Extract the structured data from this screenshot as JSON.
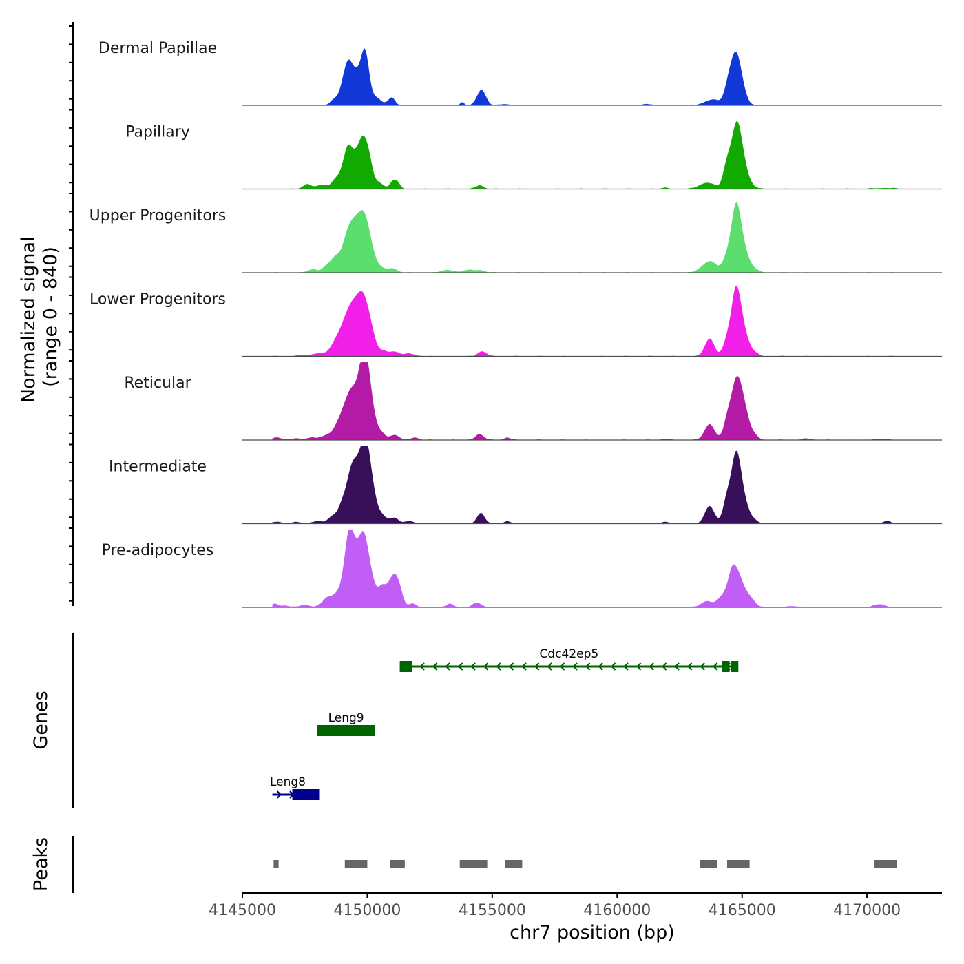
{
  "chart_data": {
    "type": "area",
    "title": "",
    "ylabel": [
      "Normalized signal",
      "(range 0 - 840)"
    ],
    "xlabel": "chr7 position (bp)",
    "xlim": [
      4145000,
      4173000
    ],
    "ylim": [
      0,
      840
    ],
    "xticks": [
      4145000,
      4150000,
      4155000,
      4160000,
      4165000,
      4170000
    ],
    "xtick_labels": [
      "4145000",
      "4150000",
      "4155000",
      "4160000",
      "4165000",
      "4170000"
    ],
    "tracks": [
      {
        "name": "Dermal Papillae",
        "color": "#1238d8",
        "peaks": [
          [
            4148650,
            70,
            150
          ],
          [
            4149000,
            150,
            200
          ],
          [
            4149230,
            570,
            180
          ],
          [
            4149480,
            230,
            160
          ],
          [
            4149800,
            580,
            200
          ],
          [
            4149950,
            380,
            140
          ],
          [
            4150320,
            120,
            220
          ],
          [
            4151000,
            90,
            120
          ],
          [
            4153800,
            50,
            80
          ],
          [
            4154570,
            250,
            170
          ],
          [
            4163800,
            90,
            300
          ],
          [
            4164400,
            150,
            150
          ],
          [
            4164700,
            710,
            210
          ],
          [
            4164950,
            250,
            200
          ],
          [
            4155500,
            20,
            160
          ],
          [
            4161200,
            20,
            160
          ],
          [
            4150900,
            40,
            160
          ]
        ]
      },
      {
        "name": "Papillary",
        "color": "#12aa00",
        "peaks": [
          [
            4147600,
            80,
            160
          ],
          [
            4148200,
            70,
            200
          ],
          [
            4148700,
            100,
            150
          ],
          [
            4149000,
            150,
            220
          ],
          [
            4149230,
            520,
            180
          ],
          [
            4149550,
            330,
            200
          ],
          [
            4149850,
            660,
            200
          ],
          [
            4150100,
            250,
            160
          ],
          [
            4150500,
            90,
            160
          ],
          [
            4151000,
            110,
            110
          ],
          [
            4151200,
            110,
            110
          ],
          [
            4154500,
            60,
            150
          ],
          [
            4163600,
            100,
            300
          ],
          [
            4164380,
            330,
            150
          ],
          [
            4164750,
            880,
            200
          ],
          [
            4165000,
            350,
            200
          ],
          [
            4165300,
            60,
            200
          ],
          [
            4161900,
            20,
            130
          ],
          [
            4170700,
            15,
            400
          ]
        ]
      },
      {
        "name": "Upper Progenitors",
        "color": "#5cde6e",
        "peaks": [
          [
            4147800,
            50,
            200
          ],
          [
            4148400,
            110,
            180
          ],
          [
            4148700,
            170,
            160
          ],
          [
            4149000,
            180,
            200
          ],
          [
            4149270,
            540,
            200
          ],
          [
            4149550,
            480,
            180
          ],
          [
            4149860,
            780,
            200
          ],
          [
            4150150,
            270,
            180
          ],
          [
            4150500,
            80,
            180
          ],
          [
            4151000,
            70,
            180
          ],
          [
            4153200,
            40,
            250
          ],
          [
            4154000,
            40,
            200
          ],
          [
            4154500,
            40,
            200
          ],
          [
            4163700,
            180,
            300
          ],
          [
            4164380,
            200,
            160
          ],
          [
            4164750,
            990,
            190
          ],
          [
            4165050,
            310,
            200
          ],
          [
            4165400,
            70,
            200
          ]
        ]
      },
      {
        "name": "Lower Progenitors",
        "color": "#f21fe8",
        "peaks": [
          [
            4147500,
            20,
            300
          ],
          [
            4148100,
            50,
            200
          ],
          [
            4148600,
            110,
            180
          ],
          [
            4148900,
            250,
            200
          ],
          [
            4149250,
            560,
            220
          ],
          [
            4149550,
            500,
            200
          ],
          [
            4149850,
            750,
            200
          ],
          [
            4150150,
            320,
            180
          ],
          [
            4150600,
            80,
            220
          ],
          [
            4151100,
            70,
            200
          ],
          [
            4151700,
            40,
            220
          ],
          [
            4154600,
            80,
            170
          ],
          [
            4163700,
            280,
            190
          ],
          [
            4164380,
            210,
            150
          ],
          [
            4164750,
            1000,
            190
          ],
          [
            4165050,
            320,
            200
          ],
          [
            4165400,
            70,
            200
          ]
        ]
      },
      {
        "name": "Reticular",
        "color": "#b31aa5",
        "peaks": [
          [
            4146400,
            40,
            150
          ],
          [
            4147100,
            20,
            250
          ],
          [
            4147800,
            40,
            200
          ],
          [
            4148400,
            80,
            200
          ],
          [
            4148800,
            160,
            180
          ],
          [
            4149000,
            180,
            180
          ],
          [
            4149270,
            560,
            200
          ],
          [
            4149540,
            460,
            180
          ],
          [
            4149860,
            1200,
            180
          ],
          [
            4150120,
            520,
            180
          ],
          [
            4150500,
            120,
            200
          ],
          [
            4151100,
            80,
            180
          ],
          [
            4151900,
            40,
            150
          ],
          [
            4154500,
            90,
            170
          ],
          [
            4155600,
            40,
            120
          ],
          [
            4161900,
            20,
            120
          ],
          [
            4163700,
            250,
            200
          ],
          [
            4164400,
            270,
            150
          ],
          [
            4164750,
            830,
            200
          ],
          [
            4165050,
            450,
            200
          ],
          [
            4165400,
            90,
            200
          ],
          [
            4167600,
            20,
            200
          ],
          [
            4170500,
            20,
            200
          ]
        ]
      },
      {
        "name": "Intermediate",
        "color": "#38105a",
        "peaks": [
          [
            4146400,
            30,
            150
          ],
          [
            4147200,
            20,
            250
          ],
          [
            4148000,
            40,
            200
          ],
          [
            4148600,
            110,
            180
          ],
          [
            4148950,
            200,
            160
          ],
          [
            4149300,
            620,
            200
          ],
          [
            4149550,
            560,
            180
          ],
          [
            4149900,
            1230,
            190
          ],
          [
            4150200,
            420,
            180
          ],
          [
            4150600,
            120,
            200
          ],
          [
            4151100,
            90,
            160
          ],
          [
            4151700,
            40,
            160
          ],
          [
            4154550,
            170,
            150
          ],
          [
            4155600,
            40,
            120
          ],
          [
            4161900,
            30,
            120
          ],
          [
            4163700,
            280,
            190
          ],
          [
            4164380,
            350,
            150
          ],
          [
            4164750,
            1040,
            190
          ],
          [
            4165050,
            310,
            200
          ],
          [
            4165400,
            60,
            200
          ],
          [
            4170800,
            40,
            160
          ]
        ]
      },
      {
        "name": "Pre-adipocytes",
        "color": "#c05ef5",
        "peaks": [
          [
            4146300,
            60,
            120
          ],
          [
            4146700,
            30,
            150
          ],
          [
            4147500,
            40,
            200
          ],
          [
            4148400,
            150,
            200
          ],
          [
            4148800,
            180,
            180
          ],
          [
            4149100,
            170,
            180
          ],
          [
            4149280,
            1000,
            180
          ],
          [
            4149550,
            460,
            180
          ],
          [
            4149860,
            1040,
            200
          ],
          [
            4150200,
            300,
            180
          ],
          [
            4150600,
            300,
            160
          ],
          [
            4150900,
            220,
            160
          ],
          [
            4151100,
            360,
            160
          ],
          [
            4151300,
            200,
            140
          ],
          [
            4151800,
            60,
            160
          ],
          [
            4153300,
            50,
            160
          ],
          [
            4154400,
            70,
            180
          ],
          [
            4163600,
            100,
            230
          ],
          [
            4164200,
            160,
            180
          ],
          [
            4164600,
            520,
            180
          ],
          [
            4164900,
            380,
            200
          ],
          [
            4165300,
            150,
            200
          ],
          [
            4167000,
            20,
            200
          ],
          [
            4170500,
            50,
            200
          ]
        ]
      }
    ],
    "genes": [
      {
        "name": "Cdc42ep5",
        "start": 4151300,
        "end": 4164850,
        "strand": "-",
        "color": "#006400",
        "exons": [
          [
            4151300,
            4151800
          ],
          [
            4164200,
            4164500
          ],
          [
            4164550,
            4164850
          ]
        ],
        "row": 0
      },
      {
        "name": "Leng9",
        "start": 4148000,
        "end": 4150300,
        "strand": "-",
        "color": "#006400",
        "exons": [
          [
            4148000,
            4150300
          ]
        ],
        "row": 1
      },
      {
        "name": "Leng8",
        "start": 4146200,
        "end": 4148100,
        "strand": "+",
        "color": "#00008b",
        "exons": [
          [
            4147000,
            4148100
          ]
        ],
        "row": 2
      }
    ],
    "peaks": [
      [
        4146250,
        4146450
      ],
      [
        4149100,
        4150000
      ],
      [
        4150900,
        4151500
      ],
      [
        4153700,
        4154800
      ],
      [
        4155500,
        4156200
      ],
      [
        4163300,
        4164000
      ],
      [
        4164400,
        4165300
      ],
      [
        4170300,
        4171200
      ]
    ],
    "track_panel_label": "Genes",
    "peaks_panel_label": "Peaks"
  },
  "colors": {
    "axis": "#000000",
    "baseline": "#4d4d4d",
    "peak_box": "#666666",
    "tick_text": "#4d4d4d"
  }
}
